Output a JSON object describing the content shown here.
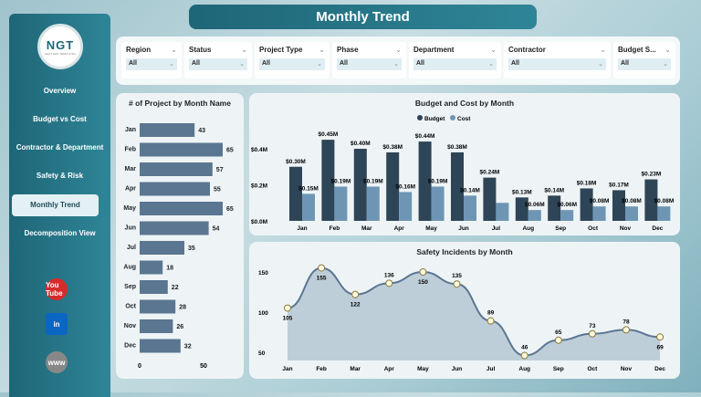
{
  "title": "Monthly Trend",
  "logo": {
    "text": "NGT",
    "tagline": "NEXT GEN TEMPLATES"
  },
  "sidebar": {
    "items": [
      {
        "label": "Overview"
      },
      {
        "label": "Budget vs Cost"
      },
      {
        "label": "Contractor & Department"
      },
      {
        "label": "Safety & Risk"
      },
      {
        "label": "Monthly Trend",
        "active": true
      },
      {
        "label": "Decomposition View"
      }
    ],
    "social": [
      {
        "icon": "youtube-icon",
        "label": "You Tube",
        "color": "#d62b2b"
      },
      {
        "icon": "linkedin-icon",
        "label": "in",
        "color": "#0a66c2"
      },
      {
        "icon": "globe-icon",
        "label": "www",
        "color": "#888888"
      }
    ]
  },
  "filters": [
    {
      "label": "Region",
      "value": "All"
    },
    {
      "label": "Status",
      "value": "All"
    },
    {
      "label": "Project Type",
      "value": "All"
    },
    {
      "label": "Phase",
      "value": "All"
    },
    {
      "label": "Department",
      "value": "All"
    },
    {
      "label": "Contractor",
      "value": "All"
    },
    {
      "label": "Budget S...",
      "value": "All"
    }
  ],
  "chart_data": [
    {
      "type": "bar",
      "orientation": "horizontal",
      "title": "# of Project by Month Name",
      "categories": [
        "Jan",
        "Feb",
        "Mar",
        "Apr",
        "May",
        "Jun",
        "Jul",
        "Aug",
        "Sep",
        "Oct",
        "Nov",
        "Dec"
      ],
      "values": [
        43,
        65,
        57,
        55,
        65,
        54,
        35,
        18,
        22,
        28,
        26,
        32
      ],
      "xticks": [
        "0",
        "50"
      ],
      "color": "#5b7691"
    },
    {
      "type": "bar",
      "title": "Budget and Cost by Month",
      "categories": [
        "Jan",
        "Feb",
        "Mar",
        "Apr",
        "May",
        "Jun",
        "Jul",
        "Aug",
        "Sep",
        "Oct",
        "Nov",
        "Dec"
      ],
      "legend": "top",
      "yticks": [
        "$0.0M",
        "$0.2M",
        "$0.4M"
      ],
      "ylim": [
        0,
        0.45
      ],
      "series": [
        {
          "name": "Budget",
          "color": "#2e4557",
          "values": [
            0.3,
            0.45,
            0.4,
            0.38,
            0.44,
            0.38,
            0.24,
            0.13,
            0.14,
            0.18,
            0.17,
            0.23
          ],
          "labels": [
            "$0.30M",
            "$0.45M",
            "$0.40M",
            "$0.38M",
            "$0.44M",
            "$0.38M",
            "$0.24M",
            "$0.13M",
            "$0.14M",
            "$0.18M",
            "$0.17M",
            "$0.23M"
          ]
        },
        {
          "name": "Cost",
          "color": "#6e96b4",
          "values": [
            0.15,
            0.19,
            0.19,
            0.16,
            0.19,
            0.14,
            0.1,
            0.06,
            0.06,
            0.08,
            0.08,
            0.08
          ],
          "labels": [
            "$0.15M",
            "$0.19M",
            "$0.19M",
            "$0.16M",
            "$0.19M",
            "$0.14M",
            "",
            "$0.06M",
            "$0.06M",
            "$0.08M",
            "$0.08M",
            "$0.08M"
          ]
        }
      ]
    },
    {
      "type": "area",
      "title": "Safety Incidents by Month",
      "categories": [
        "Jan",
        "Feb",
        "Mar",
        "Apr",
        "May",
        "Jun",
        "Jul",
        "Aug",
        "Sep",
        "Oct",
        "Nov",
        "Dec"
      ],
      "values": [
        105,
        155,
        122,
        136,
        150,
        135,
        89,
        46,
        65,
        73,
        78,
        69
      ],
      "yticks": [
        "50",
        "100",
        "150"
      ],
      "line_color": "#5b7691",
      "marker_color": "#fff8dc"
    }
  ]
}
